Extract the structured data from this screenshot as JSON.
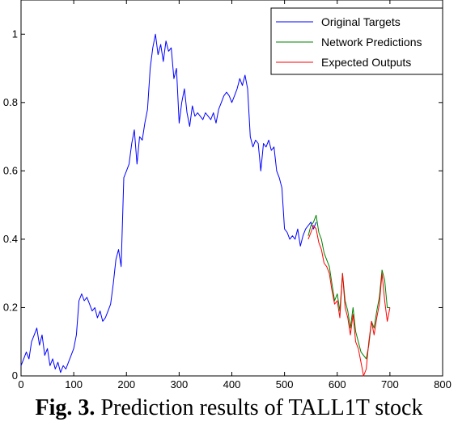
{
  "chart_data": {
    "type": "line",
    "xlim": [
      0,
      800
    ],
    "ylim": [
      0,
      1.1
    ],
    "x_ticks": [
      "0",
      "100",
      "200",
      "300",
      "400",
      "500",
      "600",
      "700",
      "800"
    ],
    "y_ticks": [
      "0",
      "0.2",
      "0.4",
      "0.6",
      "0.8",
      "1"
    ],
    "grid": false,
    "legend_position": "top-right",
    "series": [
      {
        "name": "Original Targets",
        "color": "#0000ff",
        "points": [
          [
            0,
            0.03
          ],
          [
            5,
            0.05
          ],
          [
            10,
            0.07
          ],
          [
            15,
            0.05
          ],
          [
            20,
            0.1
          ],
          [
            25,
            0.12
          ],
          [
            30,
            0.14
          ],
          [
            35,
            0.09
          ],
          [
            40,
            0.12
          ],
          [
            45,
            0.06
          ],
          [
            50,
            0.08
          ],
          [
            55,
            0.03
          ],
          [
            60,
            0.05
          ],
          [
            65,
            0.02
          ],
          [
            70,
            0.04
          ],
          [
            75,
            0.01
          ],
          [
            80,
            0.03
          ],
          [
            85,
            0.02
          ],
          [
            90,
            0.04
          ],
          [
            95,
            0.06
          ],
          [
            100,
            0.08
          ],
          [
            105,
            0.12
          ],
          [
            110,
            0.22
          ],
          [
            115,
            0.24
          ],
          [
            120,
            0.22
          ],
          [
            125,
            0.23
          ],
          [
            130,
            0.21
          ],
          [
            135,
            0.19
          ],
          [
            140,
            0.2
          ],
          [
            145,
            0.17
          ],
          [
            150,
            0.19
          ],
          [
            155,
            0.16
          ],
          [
            160,
            0.17
          ],
          [
            165,
            0.19
          ],
          [
            170,
            0.21
          ],
          [
            175,
            0.27
          ],
          [
            180,
            0.34
          ],
          [
            185,
            0.37
          ],
          [
            190,
            0.32
          ],
          [
            195,
            0.58
          ],
          [
            200,
            0.6
          ],
          [
            205,
            0.62
          ],
          [
            210,
            0.68
          ],
          [
            215,
            0.72
          ],
          [
            220,
            0.62
          ],
          [
            225,
            0.7
          ],
          [
            230,
            0.69
          ],
          [
            235,
            0.74
          ],
          [
            240,
            0.78
          ],
          [
            245,
            0.9
          ],
          [
            250,
            0.96
          ],
          [
            255,
            1.0
          ],
          [
            260,
            0.94
          ],
          [
            265,
            0.97
          ],
          [
            270,
            0.92
          ],
          [
            275,
            0.98
          ],
          [
            280,
            0.95
          ],
          [
            285,
            0.96
          ],
          [
            290,
            0.87
          ],
          [
            295,
            0.9
          ],
          [
            300,
            0.74
          ],
          [
            305,
            0.8
          ],
          [
            310,
            0.84
          ],
          [
            315,
            0.77
          ],
          [
            320,
            0.73
          ],
          [
            325,
            0.79
          ],
          [
            330,
            0.76
          ],
          [
            335,
            0.77
          ],
          [
            340,
            0.76
          ],
          [
            345,
            0.75
          ],
          [
            350,
            0.77
          ],
          [
            355,
            0.76
          ],
          [
            360,
            0.75
          ],
          [
            365,
            0.77
          ],
          [
            370,
            0.74
          ],
          [
            375,
            0.78
          ],
          [
            380,
            0.8
          ],
          [
            385,
            0.82
          ],
          [
            390,
            0.83
          ],
          [
            395,
            0.82
          ],
          [
            400,
            0.8
          ],
          [
            405,
            0.82
          ],
          [
            410,
            0.84
          ],
          [
            415,
            0.87
          ],
          [
            420,
            0.85
          ],
          [
            425,
            0.88
          ],
          [
            430,
            0.84
          ],
          [
            435,
            0.7
          ],
          [
            440,
            0.67
          ],
          [
            445,
            0.69
          ],
          [
            450,
            0.68
          ],
          [
            455,
            0.6
          ],
          [
            460,
            0.68
          ],
          [
            465,
            0.67
          ],
          [
            470,
            0.69
          ],
          [
            475,
            0.66
          ],
          [
            480,
            0.67
          ],
          [
            485,
            0.6
          ],
          [
            490,
            0.58
          ],
          [
            495,
            0.55
          ],
          [
            500,
            0.43
          ],
          [
            505,
            0.42
          ],
          [
            510,
            0.4
          ],
          [
            515,
            0.41
          ],
          [
            520,
            0.4
          ],
          [
            525,
            0.43
          ],
          [
            530,
            0.38
          ],
          [
            535,
            0.41
          ],
          [
            540,
            0.43
          ],
          [
            545,
            0.44
          ],
          [
            550,
            0.45
          ],
          [
            555,
            0.43
          ],
          [
            560,
            0.45
          ]
        ]
      },
      {
        "name": "Network Predictions",
        "color": "#008000",
        "points": [
          [
            545,
            0.41
          ],
          [
            550,
            0.44
          ],
          [
            555,
            0.45
          ],
          [
            560,
            0.47
          ],
          [
            565,
            0.42
          ],
          [
            570,
            0.4
          ],
          [
            575,
            0.36
          ],
          [
            580,
            0.34
          ],
          [
            585,
            0.32
          ],
          [
            590,
            0.27
          ],
          [
            595,
            0.22
          ],
          [
            600,
            0.24
          ],
          [
            605,
            0.19
          ],
          [
            610,
            0.3
          ],
          [
            615,
            0.22
          ],
          [
            620,
            0.19
          ],
          [
            625,
            0.14
          ],
          [
            630,
            0.2
          ],
          [
            635,
            0.13
          ],
          [
            640,
            0.1
          ],
          [
            645,
            0.07
          ],
          [
            650,
            0.06
          ],
          [
            655,
            0.05
          ],
          [
            660,
            0.09
          ],
          [
            665,
            0.16
          ],
          [
            670,
            0.14
          ],
          [
            675,
            0.19
          ],
          [
            680,
            0.23
          ],
          [
            685,
            0.31
          ],
          [
            690,
            0.28
          ],
          [
            695,
            0.2
          ],
          [
            700,
            0.2
          ]
        ]
      },
      {
        "name": "Expected Outputs",
        "color": "#ff0000",
        "points": [
          [
            545,
            0.4
          ],
          [
            550,
            0.42
          ],
          [
            555,
            0.44
          ],
          [
            560,
            0.43
          ],
          [
            565,
            0.39
          ],
          [
            570,
            0.37
          ],
          [
            575,
            0.33
          ],
          [
            580,
            0.32
          ],
          [
            585,
            0.3
          ],
          [
            590,
            0.25
          ],
          [
            595,
            0.21
          ],
          [
            600,
            0.22
          ],
          [
            605,
            0.17
          ],
          [
            610,
            0.3
          ],
          [
            615,
            0.2
          ],
          [
            620,
            0.17
          ],
          [
            625,
            0.12
          ],
          [
            630,
            0.18
          ],
          [
            635,
            0.1
          ],
          [
            640,
            0.08
          ],
          [
            645,
            0.04
          ],
          [
            650,
            0.0
          ],
          [
            655,
            0.02
          ],
          [
            660,
            0.1
          ],
          [
            665,
            0.16
          ],
          [
            670,
            0.12
          ],
          [
            675,
            0.17
          ],
          [
            680,
            0.21
          ],
          [
            685,
            0.3
          ],
          [
            690,
            0.22
          ],
          [
            695,
            0.16
          ],
          [
            700,
            0.2
          ]
        ]
      }
    ],
    "caption_label": "Fig. 3.",
    "caption_text": " Prediction results of TALL1T stock"
  }
}
